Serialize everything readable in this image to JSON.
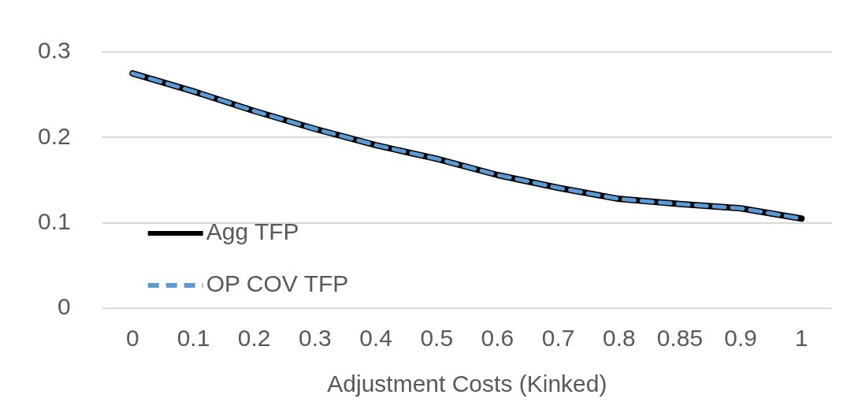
{
  "chart_data": {
    "type": "line",
    "xlabel": "Adjustment Costs (Kinked)",
    "categories": [
      "0",
      "0.1",
      "0.2",
      "0.3",
      "0.4",
      "0.5",
      "0.6",
      "0.7",
      "0.8",
      "0.85",
      "0.9",
      "1"
    ],
    "series": [
      {
        "name": "Agg TFP",
        "color": "#000000",
        "line_style": "solid",
        "values": [
          0.275,
          0.254,
          0.231,
          0.21,
          0.191,
          0.175,
          0.156,
          0.141,
          0.128,
          0.122,
          0.117,
          0.105
        ]
      },
      {
        "name": "OP COV TFP",
        "color": "#5b9bd5",
        "line_style": "dashed",
        "values": [
          0.275,
          0.254,
          0.231,
          0.21,
          0.191,
          0.175,
          0.156,
          0.141,
          0.128,
          0.122,
          0.117,
          0.105
        ]
      }
    ],
    "ylim": [
      0,
      0.3
    ],
    "yticks": [
      0,
      0.1,
      0.2,
      0.3
    ],
    "grid": "y",
    "legend": "left",
    "marker": "none"
  }
}
